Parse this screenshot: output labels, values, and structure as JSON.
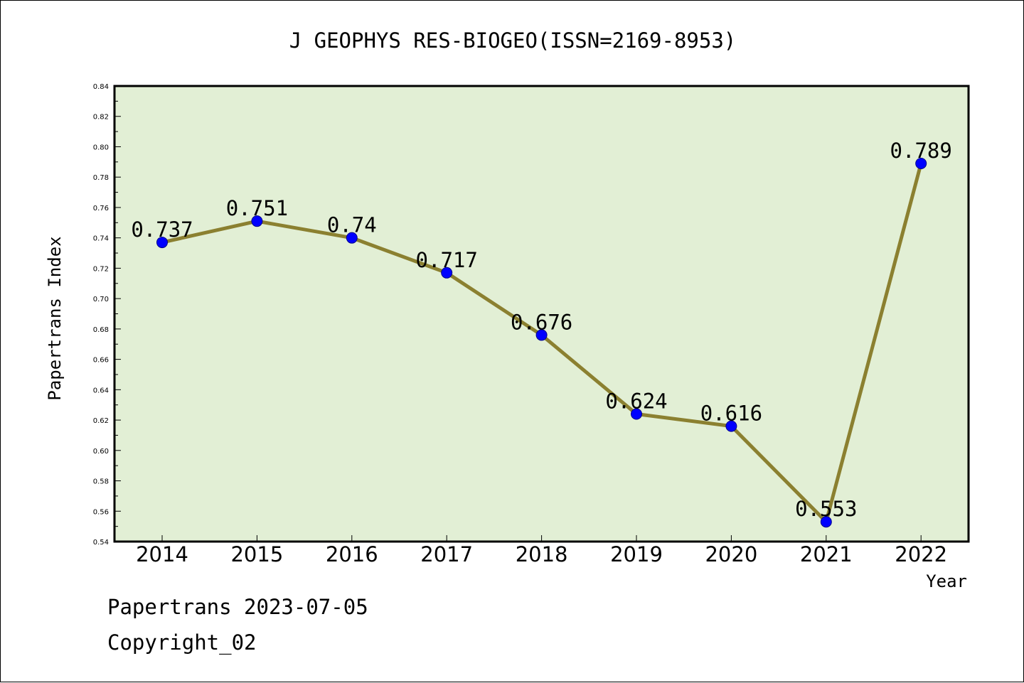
{
  "chart_data": {
    "type": "line",
    "title": "J GEOPHYS RES-BIOGEO(ISSN=2169-8953)",
    "xlabel": "Year",
    "ylabel": "Papertrans Index",
    "categories": [
      "2014",
      "2015",
      "2016",
      "2017",
      "2018",
      "2019",
      "2020",
      "2021",
      "2022"
    ],
    "values": [
      0.737,
      0.751,
      0.74,
      0.717,
      0.676,
      0.624,
      0.616,
      0.553,
      0.789
    ],
    "value_labels": [
      "0.737",
      "0.751",
      "0.74",
      "0.717",
      "0.676",
      "0.624",
      "0.616",
      "0.553",
      "0.789"
    ],
    "ylim": [
      0.54,
      0.84
    ],
    "yticks": [
      "0.54",
      "0.56",
      "0.58",
      "0.60",
      "0.62",
      "0.64",
      "0.66",
      "0.68",
      "0.70",
      "0.72",
      "0.74",
      "0.76",
      "0.78",
      "0.80",
      "0.82",
      "0.84"
    ],
    "grid": false,
    "colors": {
      "plot_background": "#e2efd5",
      "line": "#8b8030",
      "marker": "#0000ff"
    }
  },
  "footer": {
    "line1": "Papertrans 2023-07-05",
    "line2": "Copyright_02"
  }
}
